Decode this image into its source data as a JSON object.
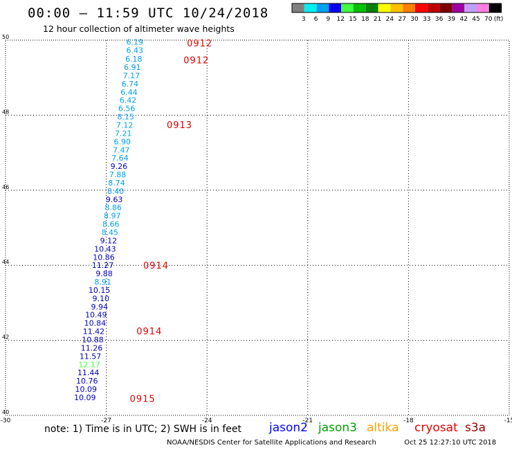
{
  "title": "00:00 – 11:59 UTC 10/24/2018",
  "subtitle": "12 hour collection of altimeter wave heights",
  "note": "note: 1) Time is in UTC; 2) SWH is in feet",
  "credit": "NOAA/NESDIS Center for Satellite Applications and Research",
  "timestamp": "Oct 25 12:27:10 UTC 2018",
  "satellites": [
    {
      "name": "jason2",
      "color": "#0000ff"
    },
    {
      "name": "jason3",
      "color": "#00a000"
    },
    {
      "name": "altika",
      "color": "#ffa000"
    },
    {
      "name": "cryosat",
      "color": "#e00000"
    },
    {
      "name": "s3a",
      "color": "#a00000"
    }
  ],
  "colorbar": {
    "colors": [
      "#808080",
      "#00f0f0",
      "#00a0f0",
      "#0000f0",
      "#40ff40",
      "#00c000",
      "#008000",
      "#ffff00",
      "#ffc000",
      "#ff8000",
      "#ff0000",
      "#c00000",
      "#800000",
      "#a000a0",
      "#c0a0ff",
      "#ff80e0",
      "#000000"
    ],
    "labels": [
      "3",
      "6",
      "9",
      "12",
      "15",
      "18",
      "21",
      "24",
      "27",
      "30",
      "33",
      "36",
      "39",
      "42",
      "45",
      "70"
    ],
    "unit": "(ft)"
  },
  "chart_data": {
    "type": "scatter",
    "xlim": [
      -30,
      -15
    ],
    "ylim": [
      40,
      50
    ],
    "xticks": [
      "-30",
      "-27",
      "-24",
      "-21",
      "-18",
      "-15"
    ],
    "yticks": [
      "40",
      "42",
      "44",
      "46",
      "48",
      "50"
    ],
    "grid": true,
    "points": [
      {
        "x": -25.9,
        "y": 49.95,
        "v": "6.19",
        "c": "#00a0f0"
      },
      {
        "x": -25.9,
        "y": 49.73,
        "v": "6.43",
        "c": "#00a0f0"
      },
      {
        "x": -25.93,
        "y": 49.5,
        "v": "6.18",
        "c": "#00a0f0"
      },
      {
        "x": -25.97,
        "y": 49.28,
        "v": "6.91",
        "c": "#00a0f0"
      },
      {
        "x": -26.0,
        "y": 49.06,
        "v": "7.17",
        "c": "#00a0f0"
      },
      {
        "x": -26.04,
        "y": 48.84,
        "v": "6.74",
        "c": "#00a0f0"
      },
      {
        "x": -26.07,
        "y": 48.62,
        "v": "6.44",
        "c": "#00a0f0"
      },
      {
        "x": -26.1,
        "y": 48.4,
        "v": "6.42",
        "c": "#00a0f0"
      },
      {
        "x": -26.14,
        "y": 48.18,
        "v": "6.56",
        "c": "#00a0f0"
      },
      {
        "x": -26.17,
        "y": 47.96,
        "v": "8.15",
        "c": "#00a0f0"
      },
      {
        "x": -26.2,
        "y": 47.74,
        "v": "7.12",
        "c": "#00a0f0"
      },
      {
        "x": -26.24,
        "y": 47.52,
        "v": "7.21",
        "c": "#00a0f0"
      },
      {
        "x": -26.27,
        "y": 47.3,
        "v": "6.90",
        "c": "#00a0f0"
      },
      {
        "x": -26.3,
        "y": 47.08,
        "v": "7.47",
        "c": "#00a0f0"
      },
      {
        "x": -26.34,
        "y": 46.86,
        "v": "7.64",
        "c": "#00a0f0"
      },
      {
        "x": -26.37,
        "y": 46.64,
        "v": "9.26",
        "c": "#0000c0"
      },
      {
        "x": -26.41,
        "y": 46.42,
        "v": "7.88",
        "c": "#00a0f0"
      },
      {
        "x": -26.44,
        "y": 46.2,
        "v": "8.74",
        "c": "#00a0f0"
      },
      {
        "x": -26.47,
        "y": 45.98,
        "v": "8.40",
        "c": "#00a0f0"
      },
      {
        "x": -26.51,
        "y": 45.76,
        "v": "9.63",
        "c": "#0000c0"
      },
      {
        "x": -26.54,
        "y": 45.54,
        "v": "8.86",
        "c": "#00a0f0"
      },
      {
        "x": -26.57,
        "y": 45.32,
        "v": "8.97",
        "c": "#00a0f0"
      },
      {
        "x": -26.61,
        "y": 45.1,
        "v": "8.66",
        "c": "#00a0f0"
      },
      {
        "x": -26.64,
        "y": 44.88,
        "v": "8.45",
        "c": "#00a0f0"
      },
      {
        "x": -26.68,
        "y": 44.66,
        "v": "9.12",
        "c": "#0000c0"
      },
      {
        "x": -26.71,
        "y": 44.44,
        "v": "10.43",
        "c": "#0000c0"
      },
      {
        "x": -26.75,
        "y": 44.22,
        "v": "10.86",
        "c": "#0000c0"
      },
      {
        "x": -26.78,
        "y": 44.0,
        "v": "11.27",
        "c": "#0000c0"
      },
      {
        "x": -26.81,
        "y": 43.78,
        "v": "9.88",
        "c": "#0000c0"
      },
      {
        "x": -26.85,
        "y": 43.56,
        "v": "8.91",
        "c": "#00a0f0"
      },
      {
        "x": -26.88,
        "y": 43.34,
        "v": "10.15",
        "c": "#0000c0"
      },
      {
        "x": -26.91,
        "y": 43.12,
        "v": "9.10",
        "c": "#0000c0"
      },
      {
        "x": -26.95,
        "y": 42.9,
        "v": "9.94",
        "c": "#0000c0"
      },
      {
        "x": -26.98,
        "y": 42.68,
        "v": "10.49",
        "c": "#0000c0"
      },
      {
        "x": -27.01,
        "y": 42.46,
        "v": "10.84",
        "c": "#0000c0"
      },
      {
        "x": -27.05,
        "y": 42.24,
        "v": "11.42",
        "c": "#0000c0"
      },
      {
        "x": -27.08,
        "y": 42.02,
        "v": "10.88",
        "c": "#0000c0"
      },
      {
        "x": -27.11,
        "y": 41.8,
        "v": "11.26",
        "c": "#0000c0"
      },
      {
        "x": -27.15,
        "y": 41.58,
        "v": "11.57",
        "c": "#0000c0"
      },
      {
        "x": -27.18,
        "y": 41.36,
        "v": "12.17",
        "c": "#40ff40"
      },
      {
        "x": -27.21,
        "y": 41.14,
        "v": "11.44",
        "c": "#0000c0"
      },
      {
        "x": -27.25,
        "y": 40.92,
        "v": "10.76",
        "c": "#0000c0"
      },
      {
        "x": -27.28,
        "y": 40.7,
        "v": "10.09",
        "c": "#0000c0"
      },
      {
        "x": -27.31,
        "y": 40.48,
        "v": "10.09",
        "c": "#0000c0"
      }
    ],
    "time_labels": [
      {
        "x": -24.6,
        "y": 49.93,
        "t": "0912"
      },
      {
        "x": -24.7,
        "y": 49.47,
        "t": "0912"
      },
      {
        "x": -25.2,
        "y": 47.75,
        "t": "0913"
      },
      {
        "x": -25.9,
        "y": 44.0,
        "t": "0914"
      },
      {
        "x": -26.1,
        "y": 42.25,
        "t": "0914"
      },
      {
        "x": -26.3,
        "y": 40.45,
        "t": "0915"
      }
    ]
  }
}
